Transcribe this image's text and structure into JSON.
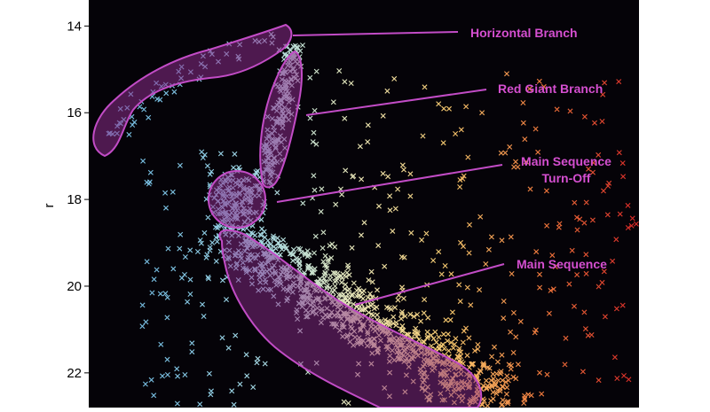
{
  "chart_data": {
    "type": "scatter",
    "title": "",
    "xlabel": "",
    "ylabel": "r",
    "ylim": [
      13.4,
      22.8
    ],
    "y_inverted": true,
    "x_ticks_visible": false,
    "y_ticks": [
      "14",
      "16",
      "18",
      "20",
      "22"
    ],
    "y_tick_values": [
      14,
      16,
      18,
      20,
      22
    ],
    "background": "#050308",
    "marker": "x",
    "colormap": "Spectral_r",
    "colors": {
      "region_fill": "#8a2c8a",
      "region_edge": "#c24cc6",
      "annotation": "#d54fd0"
    },
    "regions": [
      {
        "name": "Horizontal Branch",
        "label": "Horizontal Branch"
      },
      {
        "name": "Red Giant Branch",
        "label": "Red Giant Branch"
      },
      {
        "name": "Main Sequence Turn-Off",
        "label": "Main Sequence\nTurn-Off"
      },
      {
        "name": "Main Sequence",
        "label": "Main Sequence"
      }
    ]
  },
  "labels": {
    "ylabel": "r",
    "horizontal_branch": "Horizontal Branch",
    "red_giant_branch": "Red Giant Branch",
    "turnoff_line1": "Main Sequence",
    "turnoff_line2": "Turn-Off",
    "main_sequence": "Main Sequence"
  }
}
